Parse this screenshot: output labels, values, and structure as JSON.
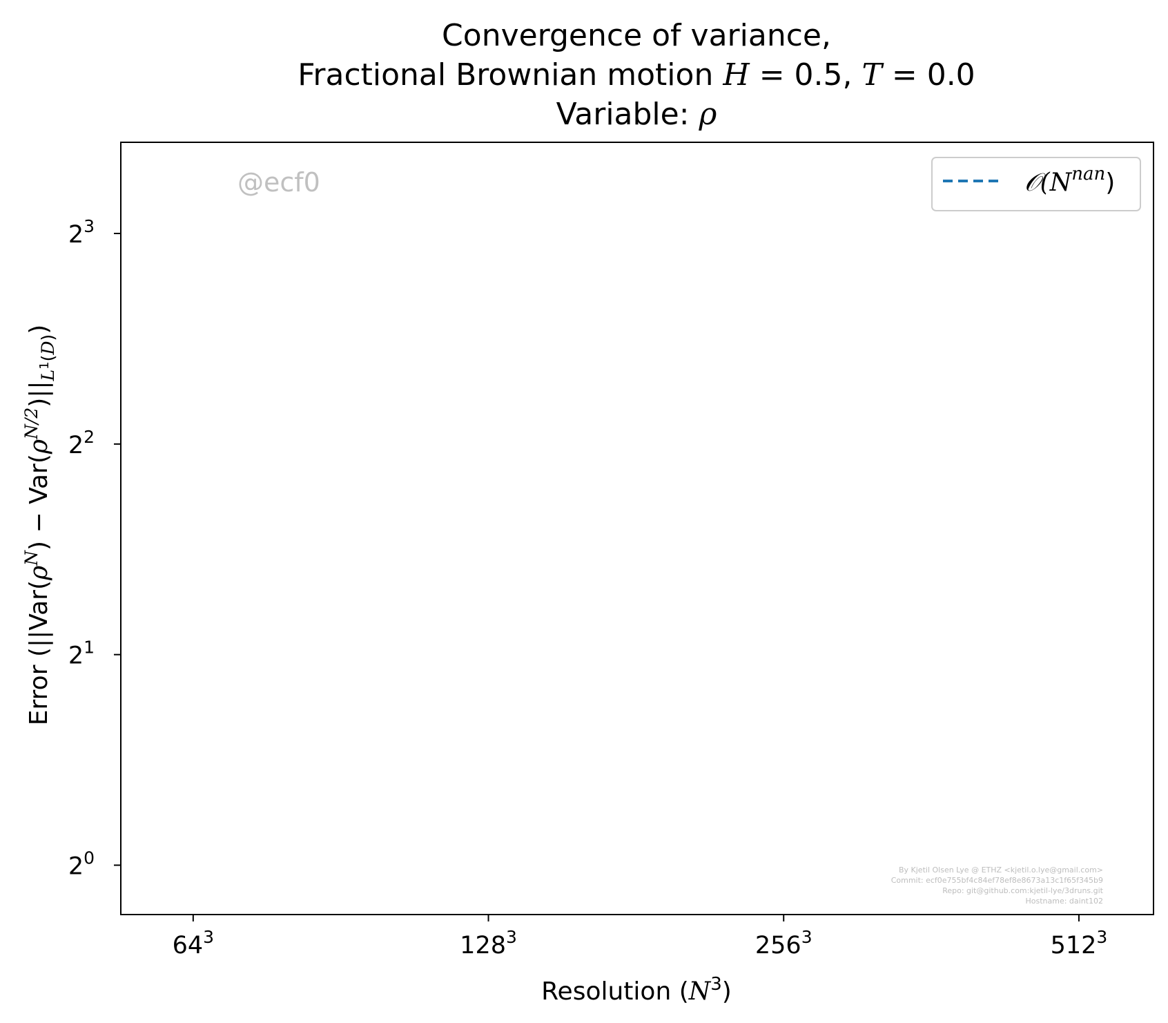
{
  "chart_data": {
    "type": "line",
    "title": [
      "Convergence of variance,",
      "Fractional Brownian motion H = 0.5, T = 0.0",
      "Variable: ρ"
    ],
    "xlabel": "Resolution (N³)",
    "ylabel": "Error (||Var(ρᴺ) − Var(ρᴺᐟ²)||L¹(D))",
    "x_scale": "log2",
    "y_scale": "log2",
    "xlim": [
      54,
      610
    ],
    "ylim": [
      0.85,
      10.8
    ],
    "x_ticks": [
      {
        "value": 64,
        "base": "64",
        "exp": "3"
      },
      {
        "value": 128,
        "base": "128",
        "exp": "3"
      },
      {
        "value": 256,
        "base": "256",
        "exp": "3"
      },
      {
        "value": 512,
        "base": "512",
        "exp": "3"
      }
    ],
    "y_ticks": [
      {
        "value": 1,
        "base": "2",
        "exp": "0"
      },
      {
        "value": 2,
        "base": "2",
        "exp": "1"
      },
      {
        "value": 4,
        "base": "2",
        "exp": "2"
      },
      {
        "value": 8,
        "base": "2",
        "exp": "3"
      }
    ],
    "series": [
      {
        "name": "𝒪(N^nan)",
        "style": "dashed",
        "color": "#1f77b4",
        "x": [],
        "y": []
      }
    ],
    "legend": {
      "placement": "top-right",
      "entry_prefix": "𝒪(N",
      "entry_exp": "nan",
      "entry_suffix": ")"
    },
    "grid": false,
    "annotations": {
      "watermark": "@ecf0",
      "info_lines": [
        "By Kjetil Olsen Lye @ ETHZ <kjetil.o.lye@gmail.com>",
        "Commit: ecf0e755bf4c84ef78ef8e8673a13c1f65f345b9",
        "Repo: git@github.com:kjetil-lye/3druns.git",
        "Hostname: daint102"
      ]
    }
  }
}
